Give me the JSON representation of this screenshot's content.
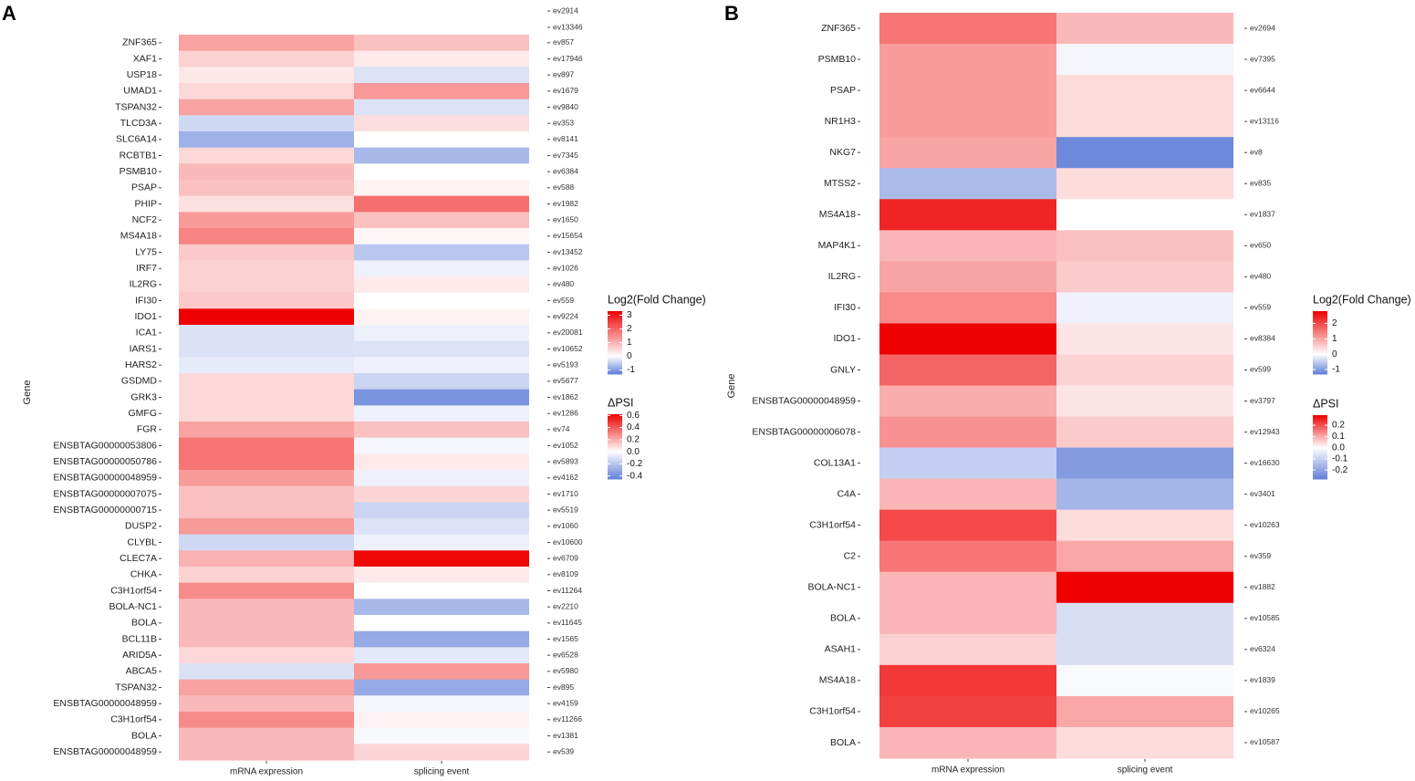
{
  "chart_data": [
    {
      "type": "heatmap",
      "panel": "A",
      "ylabel": "Gene",
      "columns": [
        "mRNA expression",
        "splicing event"
      ],
      "top_event_labels": [
        "ev2914",
        "ev13346"
      ],
      "rows": [
        {
          "gene": "ZNF365",
          "event": "ev857",
          "mrna": 1.2,
          "dpsi": 0.15
        },
        {
          "gene": "XAF1",
          "event": "ev17946",
          "mrna": 0.6,
          "dpsi": 0.05
        },
        {
          "gene": "USP18",
          "event": "ev897",
          "mrna": 0.3,
          "dpsi": -0.1
        },
        {
          "gene": "UMAD1",
          "event": "ev1679",
          "mrna": 0.5,
          "dpsi": 0.25
        },
        {
          "gene": "TSPAN32",
          "event": "ev9840",
          "mrna": 1.2,
          "dpsi": -0.1
        },
        {
          "gene": "TLCD3A",
          "event": "ev353",
          "mrna": -0.4,
          "dpsi": 0.08
        },
        {
          "gene": "SLC6A14",
          "event": "ev8141",
          "mrna": -0.8,
          "dpsi": 0.0
        },
        {
          "gene": "RCBTB1",
          "event": "ev7345",
          "mrna": 0.5,
          "dpsi": -0.25
        },
        {
          "gene": "PSMB10",
          "event": "ev6384",
          "mrna": 0.9,
          "dpsi": 0.0
        },
        {
          "gene": "PSAP",
          "event": "ev588",
          "mrna": 0.8,
          "dpsi": 0.03
        },
        {
          "gene": "PHIP",
          "event": "ev1982",
          "mrna": 0.4,
          "dpsi": 0.35
        },
        {
          "gene": "NCF2",
          "event": "ev1650",
          "mrna": 1.3,
          "dpsi": 0.15
        },
        {
          "gene": "MS4A18",
          "event": "ev15654",
          "mrna": 1.6,
          "dpsi": 0.02
        },
        {
          "gene": "LY75",
          "event": "ev13452",
          "mrna": 0.7,
          "dpsi": -0.2
        },
        {
          "gene": "IRF7",
          "event": "ev1026",
          "mrna": 0.6,
          "dpsi": -0.05
        },
        {
          "gene": "IL2RG",
          "event": "ev480",
          "mrna": 0.6,
          "dpsi": 0.05
        },
        {
          "gene": "IFI30",
          "event": "ev559",
          "mrna": 0.7,
          "dpsi": 0.0
        },
        {
          "gene": "IDO1",
          "event": "ev9224",
          "mrna": 3.3,
          "dpsi": 0.03
        },
        {
          "gene": "ICA1",
          "event": "ev20081",
          "mrna": -0.3,
          "dpsi": -0.05
        },
        {
          "gene": "IARS1",
          "event": "ev10652",
          "mrna": -0.3,
          "dpsi": -0.1
        },
        {
          "gene": "HARS2",
          "event": "ev5193",
          "mrna": -0.2,
          "dpsi": -0.05
        },
        {
          "gene": "GSDMD",
          "event": "ev5677",
          "mrna": 0.5,
          "dpsi": -0.15
        },
        {
          "gene": "GRK3",
          "event": "ev1862",
          "mrna": 0.5,
          "dpsi": -0.38
        },
        {
          "gene": "GMFG",
          "event": "ev1286",
          "mrna": 0.5,
          "dpsi": -0.05
        },
        {
          "gene": "FGR",
          "event": "ev74",
          "mrna": 1.2,
          "dpsi": 0.15
        },
        {
          "gene": "ENSBTAG00000053806",
          "event": "ev1052",
          "mrna": 1.8,
          "dpsi": -0.03
        },
        {
          "gene": "ENSBTAG00000050786",
          "event": "ev5893",
          "mrna": 1.8,
          "dpsi": 0.05
        },
        {
          "gene": "ENSBTAG00000048959",
          "event": "ev4162",
          "mrna": 1.3,
          "dpsi": -0.05
        },
        {
          "gene": "ENSBTAG00000007075",
          "event": "ev1710",
          "mrna": 0.8,
          "dpsi": 0.1
        },
        {
          "gene": "ENSBTAG00000000715",
          "event": "ev5519",
          "mrna": 0.8,
          "dpsi": -0.15
        },
        {
          "gene": "DUSP2",
          "event": "ev1060",
          "mrna": 1.3,
          "dpsi": -0.1
        },
        {
          "gene": "CLYBL",
          "event": "ev10600",
          "mrna": -0.4,
          "dpsi": -0.05
        },
        {
          "gene": "CLEC7A",
          "event": "ev6709",
          "mrna": 1.0,
          "dpsi": 0.6
        },
        {
          "gene": "CHKA",
          "event": "ev8109",
          "mrna": 0.6,
          "dpsi": 0.05
        },
        {
          "gene": "C3H1orf54",
          "event": "ev11264",
          "mrna": 1.5,
          "dpsi": 0.0
        },
        {
          "gene": "BOLA-NC1",
          "event": "ev2210",
          "mrna": 0.9,
          "dpsi": -0.25
        },
        {
          "gene": "BOLA",
          "event": "ev11645",
          "mrna": 0.9,
          "dpsi": 0.0
        },
        {
          "gene": "BCL11B",
          "event": "ev1565",
          "mrna": 0.9,
          "dpsi": -0.3
        },
        {
          "gene": "ARID5A",
          "event": "ev6528",
          "mrna": 0.5,
          "dpsi": -0.08
        },
        {
          "gene": "ABCA5",
          "event": "ev5980",
          "mrna": -0.3,
          "dpsi": 0.25
        },
        {
          "gene": "TSPAN32",
          "event": "ev895",
          "mrna": 1.2,
          "dpsi": -0.3
        },
        {
          "gene": "ENSBTAG00000048959",
          "event": "ev4159",
          "mrna": 0.9,
          "dpsi": -0.03
        },
        {
          "gene": "C3H1orf54",
          "event": "ev11266",
          "mrna": 1.5,
          "dpsi": 0.03
        },
        {
          "gene": "BOLA",
          "event": "ev1381",
          "mrna": 0.9,
          "dpsi": -0.02
        },
        {
          "gene": "ENSBTAG00000048959",
          "event": "ev539",
          "mrna": 0.9,
          "dpsi": 0.1
        }
      ],
      "legend_fc": {
        "title": "Log2(Fold Change)",
        "ticks": [
          3,
          2,
          1,
          0,
          -1
        ],
        "min": -1.3,
        "max": 3.3
      },
      "legend_psi": {
        "title": "ΔPSI",
        "ticks": [
          "0.6",
          "0.4",
          "0.2",
          "0.0",
          "-0.2",
          "-0.4"
        ],
        "min": -0.45,
        "max": 0.62
      }
    },
    {
      "type": "heatmap",
      "panel": "B",
      "ylabel": "Gene",
      "columns": [
        "mRNA expression",
        "splicing event"
      ],
      "top_event_labels": [],
      "rows": [
        {
          "gene": "ZNF365",
          "event": "ev2694",
          "mrna": 1.5,
          "dpsi": 0.08
        },
        {
          "gene": "PSMB10",
          "event": "ev7395",
          "mrna": 1.1,
          "dpsi": -0.02
        },
        {
          "gene": "PSAP",
          "event": "ev6644",
          "mrna": 1.1,
          "dpsi": 0.04
        },
        {
          "gene": "NR1H3",
          "event": "ev13116",
          "mrna": 1.1,
          "dpsi": 0.04
        },
        {
          "gene": "NKG7",
          "event": "ev8",
          "mrna": 1.0,
          "dpsi": -0.26
        },
        {
          "gene": "MTSS2",
          "event": "ev835",
          "mrna": -0.7,
          "dpsi": 0.04
        },
        {
          "gene": "MS4A18",
          "event": "ev1837",
          "mrna": 2.4,
          "dpsi": 0.0
        },
        {
          "gene": "MAP4K1",
          "event": "ev650",
          "mrna": 0.8,
          "dpsi": 0.07
        },
        {
          "gene": "IL2RG",
          "event": "ev480",
          "mrna": 1.0,
          "dpsi": 0.06
        },
        {
          "gene": "IFI30",
          "event": "ev559",
          "mrna": 1.3,
          "dpsi": -0.03
        },
        {
          "gene": "IDO1",
          "event": "ev8384",
          "mrna": 2.8,
          "dpsi": 0.03
        },
        {
          "gene": "GNLY",
          "event": "ev599",
          "mrna": 1.7,
          "dpsi": 0.05
        },
        {
          "gene": "ENSBTAG00000048959",
          "event": "ev3797",
          "mrna": 0.9,
          "dpsi": 0.03
        },
        {
          "gene": "ENSBTAG00000006078",
          "event": "ev12943",
          "mrna": 1.2,
          "dpsi": 0.06
        },
        {
          "gene": "COL13A1",
          "event": "ev16630",
          "mrna": -0.5,
          "dpsi": -0.22
        },
        {
          "gene": "C4A",
          "event": "ev3401",
          "mrna": 0.8,
          "dpsi": -0.16
        },
        {
          "gene": "C3H1orf54",
          "event": "ev10263",
          "mrna": 2.0,
          "dpsi": 0.04
        },
        {
          "gene": "C2",
          "event": "ev359",
          "mrna": 1.5,
          "dpsi": 0.1
        },
        {
          "gene": "BOLA-NC1",
          "event": "ev1882",
          "mrna": 0.8,
          "dpsi": 0.29
        },
        {
          "gene": "BOLA",
          "event": "ev10585",
          "mrna": 0.8,
          "dpsi": -0.07
        },
        {
          "gene": "ASAH1",
          "event": "ev6324",
          "mrna": 0.5,
          "dpsi": -0.07
        },
        {
          "gene": "MS4A18",
          "event": "ev1839",
          "mrna": 2.2,
          "dpsi": -0.01
        },
        {
          "gene": "C3H1orf54",
          "event": "ev10265",
          "mrna": 2.1,
          "dpsi": 0.1
        },
        {
          "gene": "BOLA",
          "event": "ev10587",
          "mrna": 0.8,
          "dpsi": 0.04
        }
      ],
      "legend_fc": {
        "title": "Log2(Fold Change)",
        "ticks": [
          2,
          1,
          0,
          -1
        ],
        "min": -1.3,
        "max": 2.8
      },
      "legend_psi": {
        "title": "ΔPSI",
        "ticks": [
          "0.2",
          "0.1",
          "0.0",
          "-0.1",
          "-0.2"
        ],
        "min": -0.28,
        "max": 0.29
      }
    }
  ]
}
